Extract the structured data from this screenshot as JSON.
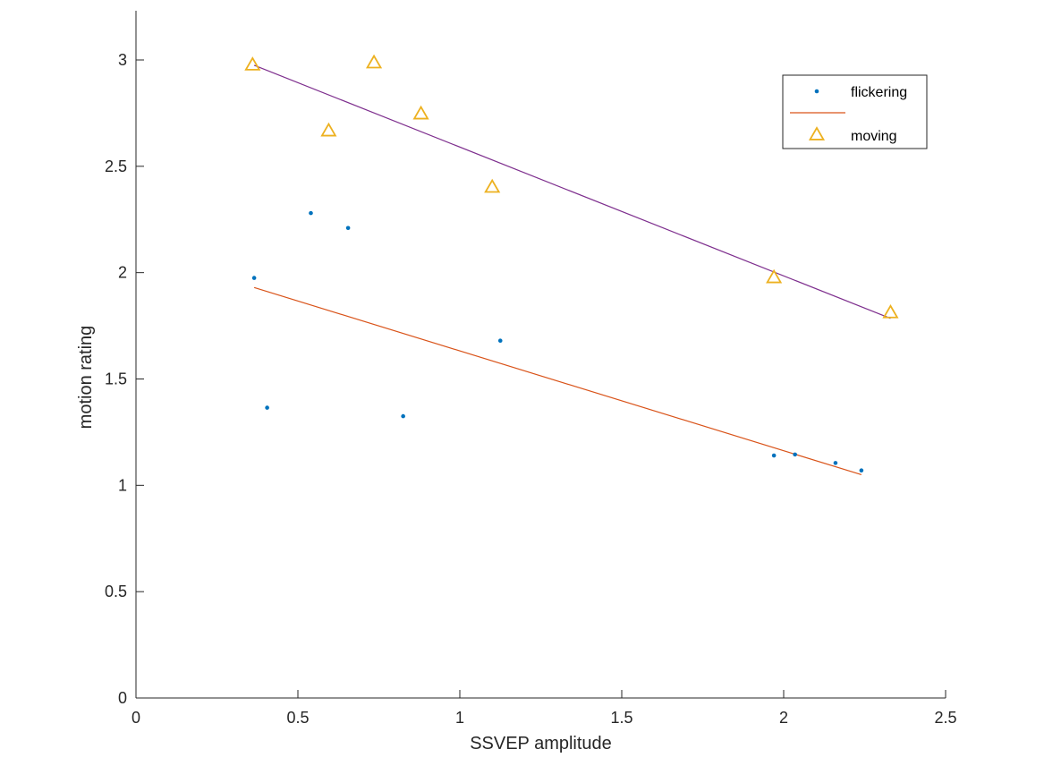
{
  "chart_data": {
    "type": "scatter",
    "title": "",
    "xlabel": "SSVEP amplitude",
    "ylabel": "motion rating",
    "xlim": [
      0,
      2.5
    ],
    "ylim": [
      0,
      3
    ],
    "xticks": [
      0,
      0.5,
      1,
      1.5,
      2,
      2.5
    ],
    "xtick_labels": [
      "0",
      "0.5",
      "1",
      "1.5",
      "2",
      "2.5"
    ],
    "yticks": [
      0,
      0.5,
      1,
      1.5,
      2,
      2.5,
      3
    ],
    "ytick_labels": [
      "0",
      "0.5",
      "1",
      "1.5",
      "2",
      "2.5",
      "3"
    ],
    "grid": false,
    "legend_position": "top-right",
    "legend": [
      {
        "label": "flickering",
        "kind": "dot",
        "color": "#0072BD"
      },
      {
        "label": "",
        "kind": "line",
        "color": "#D95319"
      },
      {
        "label": "moving",
        "kind": "triangle",
        "color": "#EDB120"
      }
    ],
    "series": [
      {
        "name": "flickering",
        "kind": "scatter",
        "marker": "dot",
        "color": "#0072BD",
        "points": [
          {
            "x": 0.365,
            "y": 1.975
          },
          {
            "x": 0.405,
            "y": 1.365
          },
          {
            "x": 0.54,
            "y": 2.28
          },
          {
            "x": 0.655,
            "y": 2.21
          },
          {
            "x": 0.825,
            "y": 1.325
          },
          {
            "x": 1.125,
            "y": 1.68
          },
          {
            "x": 1.97,
            "y": 1.14
          },
          {
            "x": 2.035,
            "y": 1.145
          },
          {
            "x": 2.16,
            "y": 1.105
          },
          {
            "x": 2.24,
            "y": 1.07
          }
        ]
      },
      {
        "name": "",
        "kind": "line",
        "color": "#D95319",
        "points": [
          {
            "x": 0.365,
            "y": 1.93
          },
          {
            "x": 2.24,
            "y": 1.05
          }
        ]
      },
      {
        "name": "moving",
        "kind": "scatter",
        "marker": "triangle",
        "color": "#EDB120",
        "points": [
          {
            "x": 0.36,
            "y": 2.975
          },
          {
            "x": 0.595,
            "y": 2.665
          },
          {
            "x": 0.735,
            "y": 2.985
          },
          {
            "x": 0.88,
            "y": 2.745
          },
          {
            "x": 1.1,
            "y": 2.4
          },
          {
            "x": 1.97,
            "y": 1.975
          },
          {
            "x": 2.33,
            "y": 1.81
          }
        ]
      },
      {
        "name": "",
        "kind": "line",
        "color": "#7E2F8E",
        "points": [
          {
            "x": 0.365,
            "y": 2.975
          },
          {
            "x": 2.33,
            "y": 1.785
          }
        ]
      }
    ]
  }
}
